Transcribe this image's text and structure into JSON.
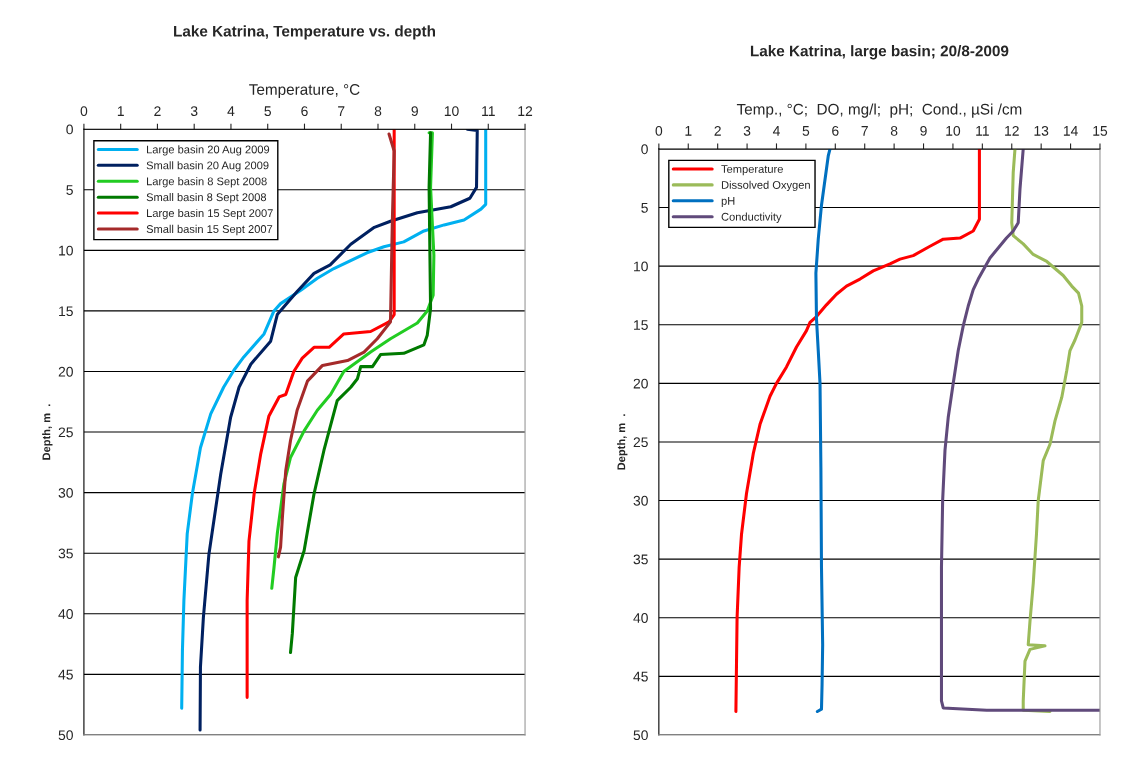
{
  "chart_data": [
    {
      "type": "line",
      "title": "Lake Katrina, Temperature vs. depth",
      "xlabel": "Temperature, °C",
      "ylabel": "Depth, m  .",
      "xlim": [
        0,
        12
      ],
      "xticks": [
        0,
        1,
        2,
        3,
        4,
        5,
        6,
        7,
        8,
        9,
        10,
        11,
        12
      ],
      "ylim": [
        50,
        0
      ],
      "yticks": [
        0,
        5,
        10,
        15,
        20,
        25,
        30,
        35,
        40,
        45,
        50
      ],
      "grid": "y",
      "legend": "top left",
      "marker": "none",
      "line_style": "solid",
      "series": [
        {
          "name": "Large basin 20 Aug 2009",
          "color": "#00b0f0",
          "x": [
            10.93,
            10.93,
            10.8,
            10.34,
            9.8,
            9.25,
            8.7,
            8.16,
            7.7,
            6.8,
            6.35,
            5.9,
            5.35,
            5.17,
            4.9,
            4.35,
            4.08,
            3.8,
            3.45,
            3.17,
            2.95,
            2.81,
            2.72,
            2.68,
            2.66
          ],
          "values": [
            0,
            6.2,
            6.6,
            7.5,
            7.9,
            8.4,
            9.3,
            9.7,
            10.2,
            11.5,
            12.3,
            13.3,
            14.4,
            15,
            16.9,
            18.8,
            19.9,
            21.3,
            23.5,
            26.3,
            30.1,
            33.4,
            38.9,
            43,
            47.8
          ]
        },
        {
          "name": "Small basin 20 Aug 2009",
          "color": "#002060",
          "x": [
            10.43,
            10.7,
            10.68,
            10.5,
            9.98,
            9.07,
            8.34,
            7.9,
            7.26,
            6.7,
            6.26,
            5.8,
            5.26,
            5.08,
            4.54,
            4.22,
            3.99,
            3.72,
            3.4,
            3.25,
            3.17,
            3.16
          ],
          "values": [
            0,
            0.1,
            4.8,
            5.7,
            6.4,
            6.9,
            7.6,
            8.1,
            9.5,
            11.2,
            11.9,
            13.4,
            15.3,
            17.5,
            19.4,
            21.3,
            23.8,
            28.5,
            35.1,
            40.3,
            44.4,
            49.6
          ]
        },
        {
          "name": "Large basin 8 Sept 2008",
          "color": "#22cc22",
          "x": [
            9.39,
            9.48,
            9.43,
            9.52,
            9.5,
            9.34,
            9.07,
            8.34,
            7.8,
            7.07,
            6.71,
            6.35,
            5.99,
            5.62,
            5.44,
            5.26,
            5.17,
            5.11
          ],
          "values": [
            0.3,
            0.3,
            4.8,
            10.4,
            13.7,
            15,
            16,
            17.3,
            18.4,
            20,
            21.9,
            23.2,
            24.9,
            27.1,
            29.3,
            33.4,
            36.2,
            37.9
          ]
        },
        {
          "name": "Small basin 8 Sept 2008",
          "color": "#007a00",
          "x": [
            9.43,
            9.39,
            9.43,
            9.34,
            9.25,
            8.7,
            8.07,
            7.85,
            7.53,
            7.44,
            7.26,
            6.89,
            6.53,
            6.26,
            5.99,
            5.76,
            5.67,
            5.62
          ],
          "values": [
            0.3,
            4.8,
            14.8,
            17,
            17.8,
            18.5,
            18.6,
            19.6,
            19.6,
            20.6,
            21.3,
            22.4,
            26.5,
            30.1,
            34.8,
            37,
            41.6,
            43.2
          ]
        },
        {
          "name": "Large basin 15 Sept 2007",
          "color": "#ff0000",
          "x": [
            8.44,
            8.44,
            8.3,
            7.8,
            7.07,
            6.67,
            6.26,
            5.94,
            5.71,
            5.49,
            5.31,
            5.03,
            4.81,
            4.63,
            4.49,
            4.44,
            4.44
          ],
          "values": [
            0,
            15.3,
            15.9,
            16.7,
            16.9,
            18,
            18,
            18.9,
            20,
            21.9,
            22.1,
            23.7,
            26.8,
            30.1,
            34,
            38.9,
            46.9
          ]
        },
        {
          "name": "Small basin 15 Sept 2007",
          "color": "#a52a2a",
          "x": [
            8.3,
            8.44,
            8.39,
            8.34,
            7.98,
            7.62,
            7.17,
            6.49,
            6.08,
            5.8,
            5.62,
            5.49,
            5.4,
            5.35,
            5.29
          ],
          "values": [
            0.4,
            1.8,
            7.6,
            15.9,
            17.3,
            18.4,
            19.1,
            19.5,
            20.8,
            23.2,
            25.7,
            28.2,
            32,
            34.5,
            35.3
          ]
        }
      ]
    },
    {
      "type": "line",
      "title": "Lake Katrina, large basin; 20/8-2009",
      "xlabel": "Temp., °C;  DO, mg/l;  pH;  Cond., µSi /cm",
      "ylabel": "Depth, m  .",
      "xlim": [
        0,
        15
      ],
      "xticks": [
        0,
        1,
        2,
        3,
        4,
        5,
        6,
        7,
        8,
        9,
        10,
        11,
        12,
        13,
        14,
        15
      ],
      "ylim": [
        50,
        0
      ],
      "yticks": [
        0,
        5,
        10,
        15,
        20,
        25,
        30,
        35,
        40,
        45,
        50
      ],
      "grid": "y",
      "legend": "top left",
      "marker": "none",
      "line_style": "solid",
      "series": [
        {
          "name": "Temperature",
          "color": "#ff0000",
          "x": [
            10.9,
            10.9,
            10.69,
            10.24,
            9.67,
            9.22,
            8.65,
            8.2,
            7.86,
            7.29,
            6.84,
            6.61,
            6.38,
            6.04,
            5.7,
            5.36,
            5.14,
            5.02,
            4.68,
            4.34,
            4.0,
            3.78,
            3.44,
            3.21,
            2.98,
            2.81,
            2.73,
            2.66,
            2.62
          ],
          "values": [
            0,
            6,
            7,
            7.6,
            7.7,
            8.3,
            9.1,
            9.4,
            9.8,
            10.4,
            11.1,
            11.4,
            11.7,
            12.4,
            13.3,
            14.3,
            14.8,
            15.5,
            16.9,
            18.6,
            20,
            21.1,
            23.5,
            26,
            29.4,
            32.9,
            35.7,
            40,
            48
          ]
        },
        {
          "name": "Dissolved Oxygen",
          "color": "#9bbb59",
          "x": [
            12.11,
            12.05,
            12.0,
            12.05,
            12.39,
            12.73,
            13.19,
            13.75,
            14.04,
            14.27,
            14.38,
            14.38,
            14.32,
            14.15,
            13.98,
            13.87,
            13.7,
            13.47,
            13.3,
            13.07,
            12.9,
            12.84,
            12.73,
            12.62,
            12.56,
            13.13,
            12.62,
            12.45,
            12.39,
            12.39,
            13.3
          ],
          "values": [
            0,
            2,
            6.3,
            7.4,
            8.1,
            9,
            9.6,
            10.8,
            11.7,
            12.3,
            13.4,
            14.8,
            15.2,
            16.3,
            17.2,
            18.9,
            21.2,
            23.2,
            25.2,
            26.6,
            30,
            32.9,
            37.1,
            40.3,
            42.3,
            42.4,
            42.7,
            43.7,
            47.1,
            47.9,
            48
          ]
        },
        {
          "name": "pH",
          "color": "#0070c0",
          "x": [
            5.82,
            5.76,
            5.53,
            5.42,
            5.34,
            5.36,
            5.42,
            5.48,
            5.51,
            5.53,
            5.57,
            5.55,
            5.53,
            5.39
          ],
          "values": [
            0,
            0.6,
            4.8,
            7.7,
            10.6,
            14.5,
            17.2,
            20,
            27.2,
            35.7,
            42.3,
            45.7,
            47.8,
            48
          ]
        },
        {
          "name": "Conductivity",
          "color": "#604a7b",
          "x": [
            12.39,
            12.28,
            12.22,
            12.05,
            11.82,
            11.26,
            10.86,
            10.69,
            10.52,
            10.35,
            10.18,
            10.01,
            9.84,
            9.73,
            9.65,
            9.61,
            9.61,
            9.61,
            9.67,
            11.15,
            15
          ],
          "values": [
            0,
            3.4,
            6.3,
            7,
            7.6,
            9.3,
            11.1,
            12,
            13.4,
            15.1,
            17.2,
            20,
            22.9,
            25.7,
            30,
            35.7,
            41.4,
            47.1,
            47.7,
            47.9,
            47.9
          ]
        }
      ]
    }
  ]
}
